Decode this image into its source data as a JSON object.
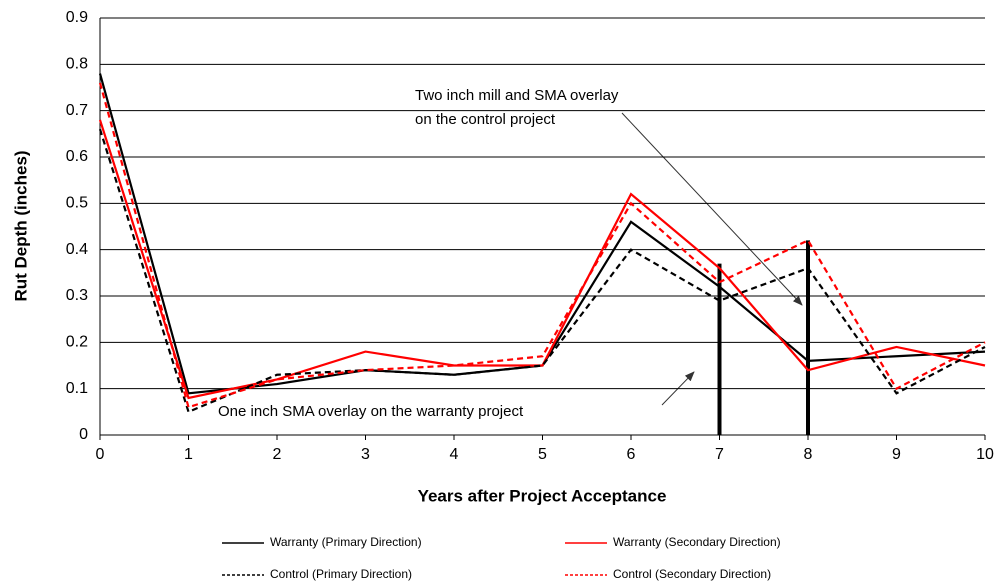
{
  "chart_data": {
    "type": "line",
    "x_label": "Years after Project Acceptance",
    "y_label": "Rut Depth (inches)",
    "x": [
      0,
      1,
      2,
      3,
      4,
      5,
      6,
      7,
      8,
      9,
      10
    ],
    "xlim": [
      0,
      10
    ],
    "xticks": [
      0,
      1,
      2,
      3,
      4,
      5,
      6,
      7,
      8,
      9,
      10
    ],
    "ylim": [
      0,
      0.9
    ],
    "yticks": [
      0,
      0.1,
      0.2,
      0.3,
      0.4,
      0.5,
      0.6,
      0.7,
      0.8,
      0.9
    ],
    "grid": true,
    "series": [
      {
        "name": "Warranty (Primary Direction)",
        "color": "#000000",
        "dash": "solid",
        "values": [
          0.78,
          0.09,
          0.11,
          0.14,
          0.13,
          0.15,
          0.46,
          0.32,
          0.16,
          0.17,
          0.18
        ]
      },
      {
        "name": "Warranty (Secondary Direction)",
        "color": "#ff0000",
        "dash": "solid",
        "values": [
          0.68,
          0.08,
          0.12,
          0.18,
          0.15,
          0.15,
          0.52,
          0.36,
          0.14,
          0.19,
          0.15
        ]
      },
      {
        "name": "Control (Primary Direction)",
        "color": "#000000",
        "dash": "dashed",
        "values": [
          0.66,
          0.05,
          0.13,
          0.14,
          0.13,
          0.15,
          0.4,
          0.29,
          0.36,
          0.09,
          0.19
        ]
      },
      {
        "name": "Control (Secondary Direction)",
        "color": "#ff0000",
        "dash": "dashed",
        "values": [
          0.76,
          0.06,
          0.12,
          0.14,
          0.15,
          0.17,
          0.5,
          0.33,
          0.42,
          0.1,
          0.2
        ]
      }
    ],
    "event_markers": [
      {
        "x": 7,
        "y": 0.37
      },
      {
        "x": 8,
        "y": 0.42
      }
    ],
    "annotations": [
      "Two inch mill and SMA overlay",
      "on the control project",
      "One inch SMA overlay on the warranty project"
    ]
  }
}
